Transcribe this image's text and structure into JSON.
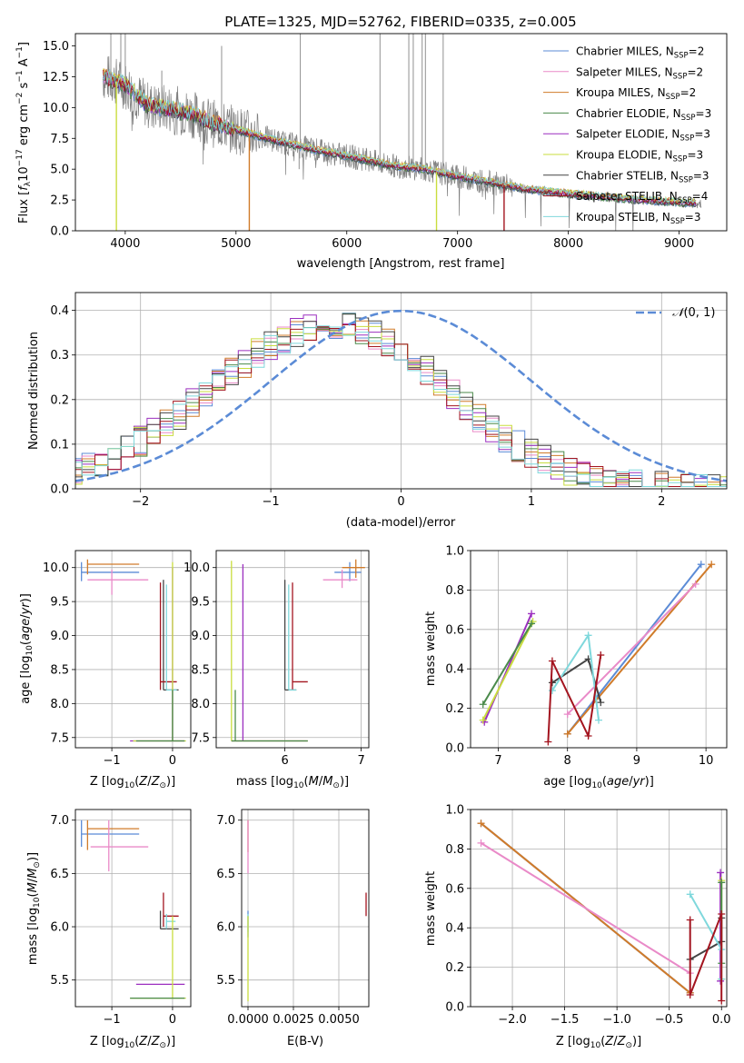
{
  "colors": {
    "c_miles": "#5b8bd6",
    "s_miles": "#e98ac8",
    "k_miles": "#d07b2a",
    "c_elodie": "#4a8a4a",
    "s_elodie": "#9b2fbf",
    "k_elodie": "#c9dd3e",
    "c_stelib": "#444444",
    "s_stelib": "#a3141f",
    "k_stelib": "#7fd8dc",
    "data": "#7f7f7f",
    "normal": "#5b8bd6"
  },
  "chart_data": [
    {
      "id": "spectrum",
      "type": "line",
      "title": "PLATE=1325, MJD=52762, FIBERID=0335, z=0.005",
      "xlabel": "wavelength [Angstrom, rest frame]",
      "ylabel": "Flux [f_λ 10^-17 erg cm^-2 s^-1 A^-1]",
      "xlim": [
        3550,
        9430
      ],
      "ylim": [
        0,
        16
      ],
      "xticks": [
        4000,
        5000,
        6000,
        7000,
        8000,
        9000
      ],
      "yticks": [
        0.0,
        2.5,
        5.0,
        7.5,
        10.0,
        12.5,
        15.0
      ],
      "legend_position": "top-right",
      "legend": [
        {
          "label": "Chabrier MILES, N_SSP=2",
          "color": "c_miles"
        },
        {
          "label": "Salpeter MILES, N_SSP=2",
          "color": "s_miles"
        },
        {
          "label": "Kroupa MILES, N_SSP=2",
          "color": "k_miles"
        },
        {
          "label": "Chabrier ELODIE, N_SSP=3",
          "color": "c_elodie"
        },
        {
          "label": "Salpeter ELODIE, N_SSP=3",
          "color": "s_elodie"
        },
        {
          "label": "Kroupa ELODIE, N_SSP=3",
          "color": "k_elodie"
        },
        {
          "label": "Chabrier STELIB, N_SSP=3",
          "color": "c_stelib"
        },
        {
          "label": "Salpeter STELIB, N_SSP=4",
          "color": "s_stelib"
        },
        {
          "label": "Kroupa STELIB, N_SSP=3",
          "color": "k_stelib"
        }
      ],
      "continuum": [
        [
          3800,
          12.5
        ],
        [
          3900,
          12.2
        ],
        [
          4000,
          11.8
        ],
        [
          4200,
          10.2
        ],
        [
          4400,
          9.9
        ],
        [
          4600,
          9.5
        ],
        [
          4800,
          8.7
        ],
        [
          5000,
          8.2
        ],
        [
          5200,
          7.7
        ],
        [
          5500,
          7.0
        ],
        [
          5800,
          6.4
        ],
        [
          6100,
          5.9
        ],
        [
          6400,
          5.3
        ],
        [
          6700,
          5.0
        ],
        [
          7000,
          4.4
        ],
        [
          7300,
          3.9
        ],
        [
          7600,
          3.4
        ],
        [
          8000,
          3.0
        ],
        [
          8500,
          2.6
        ],
        [
          9000,
          2.3
        ],
        [
          9200,
          2.2
        ]
      ],
      "gaps": [
        {
          "x": 3920,
          "series": "k_elodie"
        },
        {
          "x": 5120,
          "series": "k_miles"
        },
        {
          "x": 6810,
          "series": "k_elodie"
        },
        {
          "x": 7420,
          "series": "s_stelib"
        }
      ]
    },
    {
      "id": "residuals",
      "type": "line",
      "xlabel": "(data-model)/error",
      "ylabel": "Normed distribution",
      "xlim": [
        -2.5,
        2.5
      ],
      "ylim": [
        0,
        0.44
      ],
      "xticks": [
        -2,
        -1,
        0,
        1,
        2
      ],
      "yticks": [
        0.0,
        0.1,
        0.2,
        0.3,
        0.4
      ],
      "legend": [
        {
          "label": "N(0,1)",
          "color": "normal"
        }
      ],
      "legend_position": "top-right"
    },
    {
      "id": "age_vs_Z",
      "type": "scatter",
      "xlabel": "Z [log10(Z/Z⊙)]",
      "ylabel": "age  [log10(age/yr)]",
      "xlim": [
        -1.6,
        0.3
      ],
      "ylim": [
        7.35,
        10.25
      ],
      "xticks": [
        -1,
        0
      ],
      "yticks": [
        7.5,
        8.0,
        8.5,
        9.0,
        9.5,
        10.0
      ],
      "points": [
        {
          "c": "c_miles",
          "x": -1.5,
          "x0": -1.5,
          "x1": -0.55,
          "y": 9.93,
          "y0": 9.8,
          "y1": 10.08
        },
        {
          "c": "k_miles",
          "x": -1.4,
          "x0": -1.4,
          "x1": -0.55,
          "y": 10.05,
          "y0": 9.9,
          "y1": 10.12
        },
        {
          "c": "s_miles",
          "x": -1.0,
          "x0": -1.4,
          "x1": -0.4,
          "y": 9.82,
          "y0": 9.6,
          "y1": 9.97
        },
        {
          "c": "c_stelib",
          "x": -0.15,
          "x0": -0.15,
          "x1": 0.1,
          "y": 8.2,
          "y0": 8.2,
          "y1": 9.82
        },
        {
          "c": "s_stelib",
          "x": -0.2,
          "x0": -0.2,
          "x1": 0.07,
          "y": 8.32,
          "y0": 8.2,
          "y1": 9.78
        },
        {
          "c": "k_stelib",
          "x": -0.1,
          "x0": -0.1,
          "x1": 0.07,
          "y": 8.2,
          "y0": 8.2,
          "y1": 9.75
        },
        {
          "c": "s_elodie",
          "x": 0.0,
          "x0": -0.7,
          "x1": 0.2,
          "y": 7.45,
          "y0": 7.45,
          "y1": 10.0
        },
        {
          "c": "k_elodie",
          "x": 0.0,
          "x0": -0.65,
          "x1": 0.22,
          "y": 7.45,
          "y0": 7.45,
          "y1": 10.08
        },
        {
          "c": "c_elodie",
          "x": 0.0,
          "x0": -0.6,
          "x1": 0.2,
          "y": 7.45,
          "y0": 7.45,
          "y1": 8.2
        }
      ]
    },
    {
      "id": "age_vs_mass",
      "type": "scatter",
      "xlabel": "mass [log10(M/M⊙)]",
      "ylabel": "",
      "xlim": [
        5.1,
        7.1
      ],
      "ylim": [
        7.35,
        10.25
      ],
      "xticks": [
        6,
        7
      ],
      "yticks": [
        7.5,
        8.0,
        8.5,
        9.0,
        9.5,
        10.0
      ],
      "points": [
        {
          "c": "c_miles",
          "x": 6.85,
          "x0": 6.65,
          "x1": 7.0,
          "y": 9.93,
          "y0": 9.8,
          "y1": 10.08
        },
        {
          "c": "k_miles",
          "x": 6.93,
          "x0": 6.75,
          "x1": 7.05,
          "y": 10.0,
          "y0": 9.85,
          "y1": 10.12
        },
        {
          "c": "s_miles",
          "x": 6.75,
          "x0": 6.5,
          "x1": 6.95,
          "y": 9.82,
          "y0": 9.7,
          "y1": 9.97
        },
        {
          "c": "c_stelib",
          "x": 6.0,
          "x0": 6.0,
          "x1": 6.15,
          "y": 8.2,
          "y0": 8.2,
          "y1": 9.82
        },
        {
          "c": "s_stelib",
          "x": 6.1,
          "x0": 6.1,
          "x1": 6.3,
          "y": 8.32,
          "y0": 8.2,
          "y1": 9.78
        },
        {
          "c": "k_stelib",
          "x": 6.05,
          "x0": 6.05,
          "x1": 6.15,
          "y": 8.2,
          "y0": 8.2,
          "y1": 9.75
        },
        {
          "c": "s_elodie",
          "x": 5.45,
          "x0": 5.3,
          "x1": 6.3,
          "y": 7.45,
          "y0": 7.45,
          "y1": 10.05
        },
        {
          "c": "k_elodie",
          "x": 5.3,
          "x0": 5.3,
          "x1": 6.3,
          "y": 7.45,
          "y0": 7.45,
          "y1": 10.1
        },
        {
          "c": "c_elodie",
          "x": 5.35,
          "x0": 5.3,
          "x1": 6.3,
          "y": 7.45,
          "y0": 7.45,
          "y1": 8.2
        }
      ]
    },
    {
      "id": "weight_vs_age",
      "type": "line",
      "xlabel": "age  [log10(age/yr)]",
      "ylabel": "mass weight",
      "xlim": [
        6.6,
        10.3
      ],
      "ylim": [
        0,
        1.0
      ],
      "xticks": [
        7,
        8,
        9,
        10
      ],
      "yticks": [
        0.0,
        0.2,
        0.4,
        0.6,
        0.8,
        1.0
      ],
      "series": [
        {
          "c": "c_miles",
          "x": [
            8.0,
            9.93
          ],
          "y": [
            0.07,
            0.93
          ]
        },
        {
          "c": "k_miles",
          "x": [
            8.0,
            10.08
          ],
          "y": [
            0.07,
            0.93
          ]
        },
        {
          "c": "s_miles",
          "x": [
            8.0,
            9.85
          ],
          "y": [
            0.17,
            0.83
          ]
        },
        {
          "c": "s_elodie",
          "x": [
            6.8,
            7.48
          ],
          "y": [
            0.13,
            0.68
          ]
        },
        {
          "c": "k_elodie",
          "x": [
            6.78,
            7.5
          ],
          "y": [
            0.14,
            0.64
          ]
        },
        {
          "c": "c_elodie",
          "x": [
            6.78,
            7.48
          ],
          "y": [
            0.22,
            0.63
          ]
        },
        {
          "c": "c_stelib",
          "x": [
            7.78,
            8.3,
            8.48
          ],
          "y": [
            0.33,
            0.45,
            0.23
          ]
        },
        {
          "c": "k_stelib",
          "x": [
            7.78,
            8.3,
            8.45
          ],
          "y": [
            0.29,
            0.57,
            0.14
          ]
        },
        {
          "c": "s_stelib",
          "x": [
            7.72,
            7.78,
            8.3,
            8.48
          ],
          "y": [
            0.03,
            0.44,
            0.06,
            0.47
          ]
        }
      ]
    },
    {
      "id": "mass_vs_Z",
      "type": "scatter",
      "xlabel": "Z [log10(Z/Z⊙)]",
      "ylabel": "mass [log10(M/M⊙)]",
      "xlim": [
        -1.6,
        0.3
      ],
      "ylim": [
        5.25,
        7.1
      ],
      "xticks": [
        -1,
        0
      ],
      "yticks": [
        5.5,
        6.0,
        6.5,
        7.0
      ],
      "points": [
        {
          "c": "c_miles",
          "x": -1.5,
          "x0": -1.5,
          "x1": -0.55,
          "y": 6.87,
          "y0": 6.75,
          "y1": 7.0
        },
        {
          "c": "k_miles",
          "x": -1.4,
          "x0": -1.4,
          "x1": -0.55,
          "y": 6.92,
          "y0": 6.72,
          "y1": 7.0
        },
        {
          "c": "s_miles",
          "x": -1.05,
          "x0": -1.35,
          "x1": -0.4,
          "y": 6.75,
          "y0": 6.52,
          "y1": 7.0
        },
        {
          "c": "c_stelib",
          "x": -0.2,
          "x0": -0.2,
          "x1": 0.1,
          "y": 5.98,
          "y0": 5.98,
          "y1": 6.15
        },
        {
          "c": "s_stelib",
          "x": -0.15,
          "x0": -0.15,
          "x1": 0.1,
          "y": 6.1,
          "y0": 6.0,
          "y1": 6.32
        },
        {
          "c": "k_stelib",
          "x": -0.1,
          "x0": -0.1,
          "x1": 0.05,
          "y": 6.05,
          "y0": 5.98,
          "y1": 6.12
        },
        {
          "c": "s_elodie",
          "x": -0.6,
          "x0": -0.6,
          "x1": 0.2,
          "y": 5.46,
          "y0": 5.46,
          "y1": 5.46
        },
        {
          "c": "k_elodie",
          "x": 0.0,
          "x0": -0.7,
          "x1": 0.22,
          "y": 5.33,
          "y0": 5.33,
          "y1": 6.1
        },
        {
          "c": "c_elodie",
          "x": -0.05,
          "x0": -0.7,
          "x1": 0.2,
          "y": 5.33,
          "y0": 5.33,
          "y1": 5.33
        }
      ]
    },
    {
      "id": "mass_vs_ebv",
      "type": "scatter",
      "xlabel": "E(B-V)",
      "ylabel": "",
      "xlim": [
        -0.00035,
        0.00665
      ],
      "ylim": [
        5.25,
        7.1
      ],
      "xticks": [
        0.0,
        0.0025,
        0.005
      ],
      "xticklabels": [
        "0.0000",
        "0.0025",
        "0.0050"
      ],
      "yticks": [
        5.5,
        6.0,
        6.5,
        7.0
      ],
      "points": [
        {
          "c": "k_miles",
          "x": 0.0,
          "y": 6.85,
          "y0": 6.7,
          "y1": 7.0
        },
        {
          "c": "s_miles",
          "x": 0.0,
          "y": 6.8,
          "y0": 6.5,
          "y1": 7.0
        },
        {
          "c": "c_miles",
          "x": 0.0,
          "y": 6.0,
          "y0": 5.9,
          "y1": 6.15
        },
        {
          "c": "k_stelib",
          "x": 0.0,
          "y": 6.05,
          "y0": 5.95,
          "y1": 6.12
        },
        {
          "c": "k_elodie",
          "x": 0.0,
          "y": 5.4,
          "y0": 5.3,
          "y1": 6.1
        },
        {
          "c": "s_stelib",
          "x": 0.0065,
          "y": 6.1,
          "y0": 6.1,
          "y1": 6.32
        }
      ]
    },
    {
      "id": "weight_vs_Z",
      "type": "line",
      "xlabel": "Z [log10(Z/Z⊙)]",
      "ylabel": "mass weight",
      "xlim": [
        -2.4,
        0.05
      ],
      "ylim": [
        0,
        1.0
      ],
      "xticks": [
        -2.0,
        -1.5,
        -1.0,
        -0.5,
        0.0
      ],
      "xticklabels": [
        "−2.0",
        "−1.5",
        "−1.0",
        "−0.5",
        "0.0"
      ],
      "yticks": [
        0.0,
        0.2,
        0.4,
        0.6,
        0.8,
        1.0
      ],
      "series": [
        {
          "c": "c_miles",
          "x": [
            -2.3,
            -0.3
          ],
          "y": [
            0.93,
            0.07
          ]
        },
        {
          "c": "k_miles",
          "x": [
            -2.3,
            -0.3
          ],
          "y": [
            0.93,
            0.07
          ]
        },
        {
          "c": "s_miles",
          "x": [
            -2.3,
            -0.3
          ],
          "y": [
            0.83,
            0.17
          ]
        },
        {
          "c": "s_elodie",
          "x": [
            -0.01,
            -0.01
          ],
          "y": [
            0.13,
            0.68
          ]
        },
        {
          "c": "k_elodie",
          "x": [
            0.0,
            0.0
          ],
          "y": [
            0.14,
            0.64
          ]
        },
        {
          "c": "c_elodie",
          "x": [
            0.0,
            0.0
          ],
          "y": [
            0.22,
            0.63
          ]
        },
        {
          "c": "c_stelib",
          "x": [
            -0.3,
            0.0,
            0.0
          ],
          "y": [
            0.24,
            0.33,
            0.45
          ]
        },
        {
          "c": "k_stelib",
          "x": [
            -0.3,
            0.0,
            0.0
          ],
          "y": [
            0.57,
            0.29,
            0.14
          ]
        },
        {
          "c": "s_stelib",
          "x": [
            -0.3,
            -0.3,
            0.0,
            0.0
          ],
          "y": [
            0.44,
            0.06,
            0.47,
            0.03
          ]
        }
      ]
    }
  ]
}
